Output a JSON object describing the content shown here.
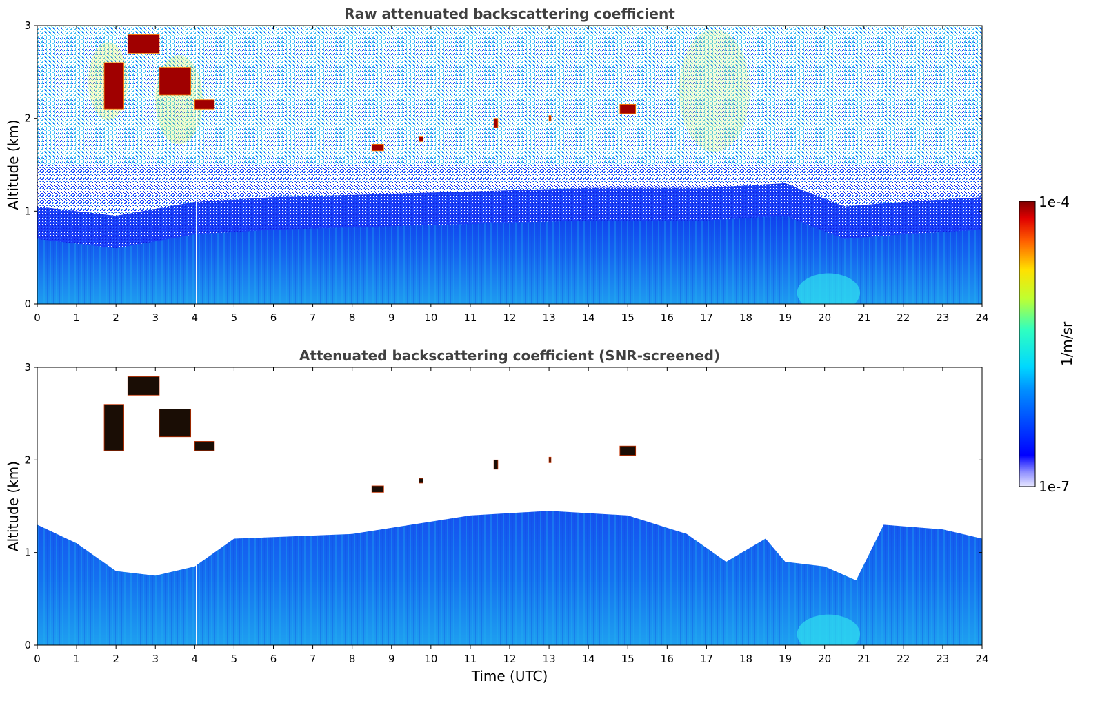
{
  "colorbar": {
    "max_label": "1e-4",
    "min_label": "1e-7",
    "unit_label": "1/m/sr",
    "scale": "log",
    "colormap": "jet"
  },
  "xlabel": "Time (UTC)",
  "chart_data": [
    {
      "type": "heatmap",
      "title": "Raw attenuated backscattering coefficient",
      "xlabel": "",
      "ylabel": "Altitude (km)",
      "xlim": [
        0,
        24
      ],
      "ylim": [
        0,
        3
      ],
      "x_ticks": [
        "0",
        "1",
        "2",
        "3",
        "4",
        "5",
        "6",
        "7",
        "8",
        "9",
        "10",
        "11",
        "12",
        "13",
        "14",
        "15",
        "16",
        "17",
        "18",
        "19",
        "20",
        "21",
        "22",
        "23",
        "24"
      ],
      "y_ticks": [
        "0",
        "1",
        "2",
        "3"
      ],
      "color_range": [
        1e-07,
        0.0001
      ],
      "features": {
        "boundary_layer_top_km": [
          [
            0,
            0.7
          ],
          [
            2,
            0.6
          ],
          [
            4,
            0.75
          ],
          [
            6,
            0.8
          ],
          [
            10,
            0.85
          ],
          [
            14,
            0.9
          ],
          [
            17,
            0.9
          ],
          [
            19,
            0.95
          ],
          [
            20.5,
            0.7
          ],
          [
            22,
            0.75
          ],
          [
            24,
            0.8
          ]
        ],
        "noise_above_boundary_layer": true,
        "cloud_layers": [
          {
            "time": [
              1.7,
              2.2
            ],
            "altitude_km": [
              2.1,
              2.6
            ]
          },
          {
            "time": [
              2.3,
              3.1
            ],
            "altitude_km": [
              2.7,
              2.9
            ]
          },
          {
            "time": [
              3.1,
              3.9
            ],
            "altitude_km": [
              2.25,
              2.55
            ]
          },
          {
            "time": [
              4.0,
              4.5
            ],
            "altitude_km": [
              2.1,
              2.2
            ]
          },
          {
            "time": [
              8.5,
              8.8
            ],
            "altitude_km": [
              1.65,
              1.72
            ]
          },
          {
            "time": [
              9.7,
              9.8
            ],
            "altitude_km": [
              1.75,
              1.8
            ]
          },
          {
            "time": [
              11.6,
              11.7
            ],
            "altitude_km": [
              1.9,
              2.0
            ]
          },
          {
            "time": [
              13.0,
              13.05
            ],
            "altitude_km": [
              1.97,
              2.03
            ]
          },
          {
            "time": [
              14.8,
              15.2
            ],
            "altitude_km": [
              2.05,
              2.15
            ]
          }
        ]
      }
    },
    {
      "type": "heatmap",
      "title": "Attenuated backscattering coefficient (SNR-screened)",
      "xlabel": "Time (UTC)",
      "ylabel": "Altitude (km)",
      "xlim": [
        0,
        24
      ],
      "ylim": [
        0,
        3
      ],
      "x_ticks": [
        "0",
        "1",
        "2",
        "3",
        "4",
        "5",
        "6",
        "7",
        "8",
        "9",
        "10",
        "11",
        "12",
        "13",
        "14",
        "15",
        "16",
        "17",
        "18",
        "19",
        "20",
        "21",
        "22",
        "23",
        "24"
      ],
      "y_ticks": [
        "0",
        "1",
        "2",
        "3"
      ],
      "color_range": [
        1e-07,
        0.0001
      ],
      "features": {
        "screened_signal_top_km": [
          [
            0,
            1.3
          ],
          [
            1,
            1.1
          ],
          [
            2,
            0.8
          ],
          [
            3,
            0.75
          ],
          [
            4,
            0.85
          ],
          [
            5,
            1.15
          ],
          [
            8,
            1.2
          ],
          [
            11,
            1.4
          ],
          [
            13,
            1.45
          ],
          [
            15,
            1.4
          ],
          [
            16.5,
            1.2
          ],
          [
            17.5,
            0.9
          ],
          [
            18.5,
            1.15
          ],
          [
            19,
            0.9
          ],
          [
            20,
            0.85
          ],
          [
            20.8,
            0.7
          ],
          [
            21.5,
            1.3
          ],
          [
            23,
            1.25
          ],
          [
            24,
            1.15
          ]
        ],
        "cloud_layers": [
          {
            "time": [
              1.7,
              2.2
            ],
            "altitude_km": [
              2.1,
              2.6
            ]
          },
          {
            "time": [
              2.3,
              3.1
            ],
            "altitude_km": [
              2.7,
              2.9
            ]
          },
          {
            "time": [
              3.1,
              3.9
            ],
            "altitude_km": [
              2.25,
              2.55
            ]
          },
          {
            "time": [
              4.0,
              4.5
            ],
            "altitude_km": [
              2.1,
              2.2
            ]
          },
          {
            "time": [
              8.5,
              8.8
            ],
            "altitude_km": [
              1.65,
              1.72
            ]
          },
          {
            "time": [
              9.7,
              9.8
            ],
            "altitude_km": [
              1.75,
              1.8
            ]
          },
          {
            "time": [
              11.6,
              11.7
            ],
            "altitude_km": [
              1.9,
              2.0
            ]
          },
          {
            "time": [
              13.0,
              13.05
            ],
            "altitude_km": [
              1.97,
              2.03
            ]
          },
          {
            "time": [
              14.8,
              15.2
            ],
            "altitude_km": [
              2.05,
              2.15
            ]
          }
        ]
      }
    }
  ]
}
